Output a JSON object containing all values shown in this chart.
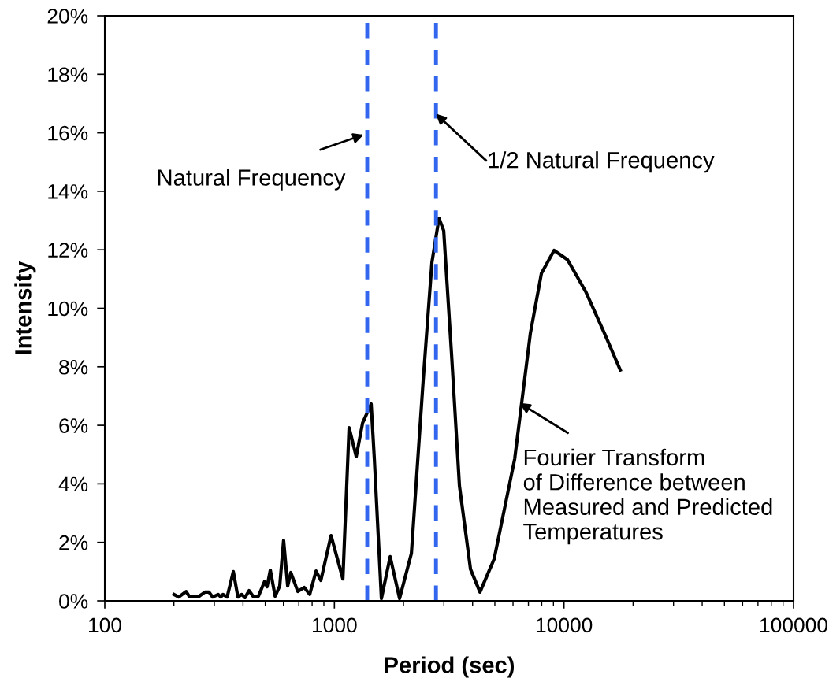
{
  "chart_data": {
    "type": "line",
    "xlabel": "Period (sec)",
    "ylabel": "Intensity",
    "log": "x",
    "xlim": [
      100,
      100000
    ],
    "xticks": [
      100,
      1000,
      10000,
      100000
    ],
    "ylim": [
      0,
      20
    ],
    "yticks": [
      {
        "value": 0,
        "label": "0%"
      },
      {
        "value": 2,
        "label": "2%"
      },
      {
        "value": 4,
        "label": "4%"
      },
      {
        "value": 6,
        "label": "6%"
      },
      {
        "value": 8,
        "label": "8%"
      },
      {
        "value": 10,
        "label": "10%"
      },
      {
        "value": 12,
        "label": "12%"
      },
      {
        "value": 14,
        "label": "14%"
      },
      {
        "value": 16,
        "label": "16%"
      },
      {
        "value": 18,
        "label": "18%"
      },
      {
        "value": 20,
        "label": "20%"
      }
    ],
    "grid": false,
    "legend": false,
    "marker": "none",
    "line_style": "solid",
    "series": [
      {
        "color": "#000000",
        "x": [
          200,
          210,
          226,
          233,
          258,
          273,
          284,
          295,
          312,
          320,
          327,
          341,
          363,
          380,
          395,
          408,
          425,
          442,
          467,
          497,
          509,
          526,
          552,
          578,
          601,
          626,
          646,
          693,
          739,
          781,
          832,
          873,
          967,
          1089,
          1159,
          1245,
          1327,
          1446,
          1493,
          1603,
          1750,
          1923,
          2165,
          2437,
          2660,
          2855,
          2994,
          3239,
          3506,
          3918,
          4307,
          4965,
          6100,
          7140,
          7980,
          9060,
          10360,
          12420,
          15000,
          17590
        ],
        "values": [
          0.22,
          0.13,
          0.32,
          0.16,
          0.16,
          0.3,
          0.3,
          0.13,
          0.22,
          0.13,
          0.22,
          0.13,
          1.0,
          0.13,
          0.22,
          0.11,
          0.35,
          0.16,
          0.16,
          0.67,
          0.48,
          1.05,
          0.16,
          0.51,
          2.07,
          0.51,
          0.97,
          0.32,
          0.46,
          0.22,
          1.02,
          0.7,
          2.23,
          0.75,
          5.92,
          4.93,
          6.08,
          6.73,
          4.85,
          0.08,
          1.51,
          0.08,
          1.62,
          7.54,
          11.57,
          13.08,
          12.65,
          8.43,
          3.93,
          1.08,
          0.3,
          1.43,
          4.85,
          9.15,
          11.2,
          11.98,
          11.66,
          10.58,
          9.15,
          7.89
        ]
      }
    ],
    "ref_lines": [
      {
        "axis": "x",
        "value": 1390,
        "color": "#3366ee",
        "line_style": "dashed"
      },
      {
        "axis": "x",
        "value": 2770,
        "color": "#3366ee",
        "line_style": "dashed"
      }
    ],
    "annotations": [
      {
        "text": "Natural Frequency",
        "x": 1370,
        "y": 15.96
      },
      {
        "text": "1/2 Natural Frequency",
        "x": 2720,
        "y": 16.7
      },
      {
        "text": "Fourier Transform\nof Difference between\nMeasured and Predicted\nTemperatures",
        "x": 6300,
        "y": 6.8
      }
    ]
  }
}
